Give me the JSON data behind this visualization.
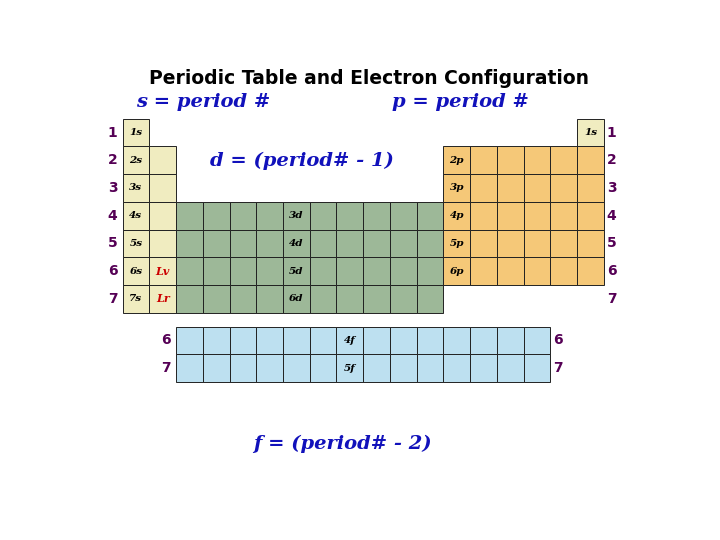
{
  "title": "Periodic Table and Electron Configuration",
  "s_label": "s = period #",
  "p_label": "p = period #",
  "d_label": "d = (period# - 1)",
  "f_label": "f = (period# - 2)",
  "bg_color": "#ffffff",
  "s_color": "#f0ecc0",
  "p_color": "#f5c878",
  "d_color": "#9db898",
  "f_color": "#bde0f0",
  "border_color": "#222222",
  "period_label_color": "#550055",
  "title_color": "#000000",
  "label_blue": "#1111bb",
  "lv_color": "#cc0000",
  "lr_color": "#cc0000"
}
